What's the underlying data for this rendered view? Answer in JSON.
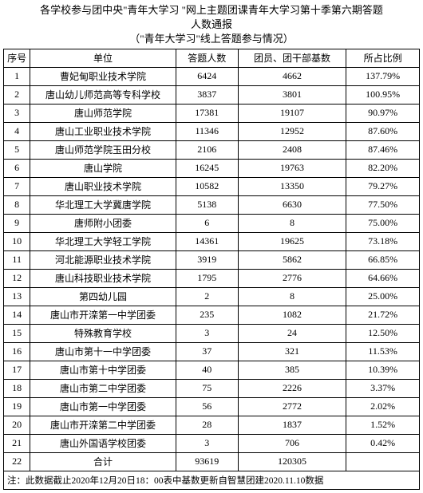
{
  "title": {
    "line1": "各学校参与团中央\"青年大学习 \"网上主题团课青年大学习第十季第六期答题",
    "line2": "人数通报",
    "line3": "（\"青年大学习\"线上答题参与情况）"
  },
  "headers": {
    "idx": "序号",
    "unit": "单位",
    "answers": "答题人数",
    "base": "团员、团干部基数",
    "pct": "所占比例"
  },
  "rows": [
    {
      "idx": "1",
      "unit": "曹妃甸职业技术学院",
      "answers": "6424",
      "base": "4662",
      "pct": "137.79%"
    },
    {
      "idx": "2",
      "unit": "唐山幼儿师范高等专科学校",
      "answers": "3837",
      "base": "3801",
      "pct": "100.95%"
    },
    {
      "idx": "3",
      "unit": "唐山师范学院",
      "answers": "17381",
      "base": "19107",
      "pct": "90.97%"
    },
    {
      "idx": "4",
      "unit": "唐山工业职业技术学院",
      "answers": "11346",
      "base": "12952",
      "pct": "87.60%"
    },
    {
      "idx": "5",
      "unit": "唐山师范学院玉田分校",
      "answers": "2106",
      "base": "2408",
      "pct": "87.46%"
    },
    {
      "idx": "6",
      "unit": "唐山学院",
      "answers": "16245",
      "base": "19763",
      "pct": "82.20%"
    },
    {
      "idx": "7",
      "unit": "唐山职业技术学院",
      "answers": "10582",
      "base": "13350",
      "pct": "79.27%"
    },
    {
      "idx": "8",
      "unit": "华北理工大学冀唐学院",
      "answers": "5138",
      "base": "6630",
      "pct": "77.50%"
    },
    {
      "idx": "9",
      "unit": "唐师附小团委",
      "answers": "6",
      "base": "8",
      "pct": "75.00%"
    },
    {
      "idx": "10",
      "unit": "华北理工大学轻工学院",
      "answers": "14361",
      "base": "19625",
      "pct": "73.18%"
    },
    {
      "idx": "11",
      "unit": "河北能源职业技术学院",
      "answers": "3919",
      "base": "5862",
      "pct": "66.85%"
    },
    {
      "idx": "12",
      "unit": "唐山科技职业技术学院",
      "answers": "1795",
      "base": "2776",
      "pct": "64.66%"
    },
    {
      "idx": "13",
      "unit": "第四幼儿园",
      "answers": "2",
      "base": "8",
      "pct": "25.00%"
    },
    {
      "idx": "14",
      "unit": "唐山市开滦第一中学团委",
      "answers": "235",
      "base": "1082",
      "pct": "21.72%"
    },
    {
      "idx": "15",
      "unit": "特殊教育学校",
      "answers": "3",
      "base": "24",
      "pct": "12.50%"
    },
    {
      "idx": "16",
      "unit": "唐山市第十一中学团委",
      "answers": "37",
      "base": "321",
      "pct": "11.53%"
    },
    {
      "idx": "17",
      "unit": "唐山市第十中学团委",
      "answers": "40",
      "base": "385",
      "pct": "10.39%"
    },
    {
      "idx": "18",
      "unit": "唐山市第二中学团委",
      "answers": "75",
      "base": "2226",
      "pct": "3.37%"
    },
    {
      "idx": "19",
      "unit": "唐山市第一中学团委",
      "answers": "56",
      "base": "2772",
      "pct": "2.02%"
    },
    {
      "idx": "20",
      "unit": "唐山市开滦第二中学团委",
      "answers": "28",
      "base": "1837",
      "pct": "1.52%"
    },
    {
      "idx": "21",
      "unit": "唐山外国语学校团委",
      "answers": "3",
      "base": "706",
      "pct": "0.42%"
    },
    {
      "idx": "22",
      "unit": "合计",
      "answers": "93619",
      "base": "120305",
      "pct": ""
    }
  ],
  "footnote": "注：此数据截止2020年12月20日18：00表中基数更新自智慧团建2020.11.10数据"
}
